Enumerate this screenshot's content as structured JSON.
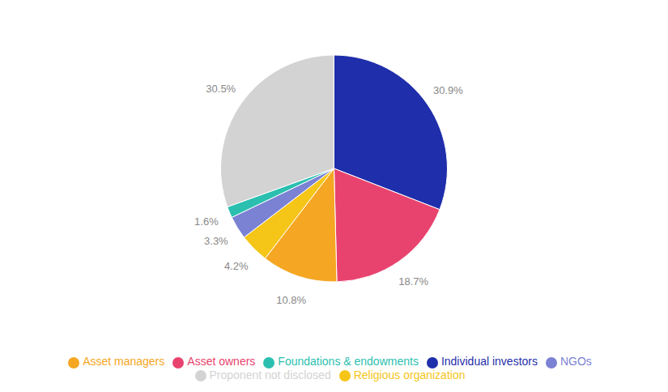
{
  "chart_data": {
    "type": "pie",
    "categories": [
      "Individual investors",
      "Asset owners",
      "Asset managers",
      "Religious organization",
      "NGOs",
      "Foundations & endowments",
      "Proponent not disclosed"
    ],
    "values": [
      30.9,
      18.7,
      10.8,
      4.2,
      3.3,
      1.6,
      30.5
    ],
    "value_labels": [
      "30.9%",
      "18.7%",
      "10.8%",
      "4.2%",
      "3.3%",
      "1.6%",
      "30.5%"
    ],
    "colors": [
      "#1f2eaa",
      "#e8436e",
      "#f5a623",
      "#f5c518",
      "#7b82d4",
      "#2bbfb0",
      "#d3d3d3"
    ],
    "data_labels": true,
    "legend": "bottom"
  }
}
